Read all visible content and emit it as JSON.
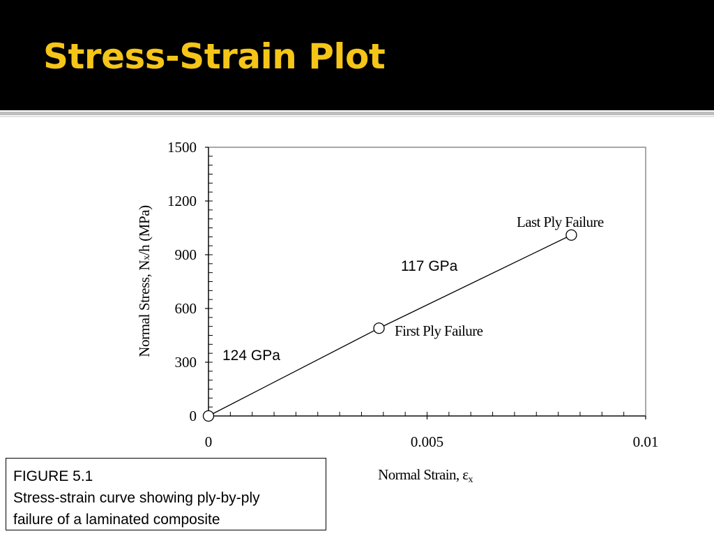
{
  "slide": {
    "title": "Stress-Strain Plot",
    "title_color": "#f5c518",
    "header_bg": "#000000"
  },
  "caption": {
    "figure_label": "FIGURE 5.1",
    "line_1": "Stress-strain curve showing ply-by-ply",
    "line_2": "failure of a laminated composite"
  },
  "chart_data": {
    "type": "line",
    "title": "",
    "xlabel": "Normal Strain, εx",
    "xlabel_main": "Normal Strain, ε",
    "xlabel_sub": "x",
    "ylabel": "Normal Stress, Nx/h (MPa)",
    "ylabel_pre": "Normal Stress, N",
    "ylabel_sub": "x",
    "ylabel_post": "/h (MPa)",
    "xlim": [
      0,
      0.01
    ],
    "ylim": [
      0,
      1500
    ],
    "x_ticks": [
      0,
      0.005,
      0.01
    ],
    "x_tick_labels": [
      "0",
      "0.005",
      "0.01"
    ],
    "y_ticks": [
      0,
      300,
      600,
      900,
      1200,
      1500
    ],
    "y_tick_labels": [
      "0",
      "300",
      "600",
      "900",
      "1200",
      "1500"
    ],
    "grid": false,
    "series": [
      {
        "x": [
          0,
          0.0039,
          0.0083
        ],
        "y": [
          0,
          490,
          1010
        ]
      }
    ],
    "markers": [
      {
        "x": 0,
        "y": 0
      },
      {
        "x": 0.0039,
        "y": 490,
        "label": "First Ply Failure"
      },
      {
        "x": 0.0083,
        "y": 1010,
        "label": "Last Ply Failure"
      }
    ],
    "annotations": [
      {
        "text": "124 GPa"
      },
      {
        "text": "117 GPa"
      }
    ]
  }
}
